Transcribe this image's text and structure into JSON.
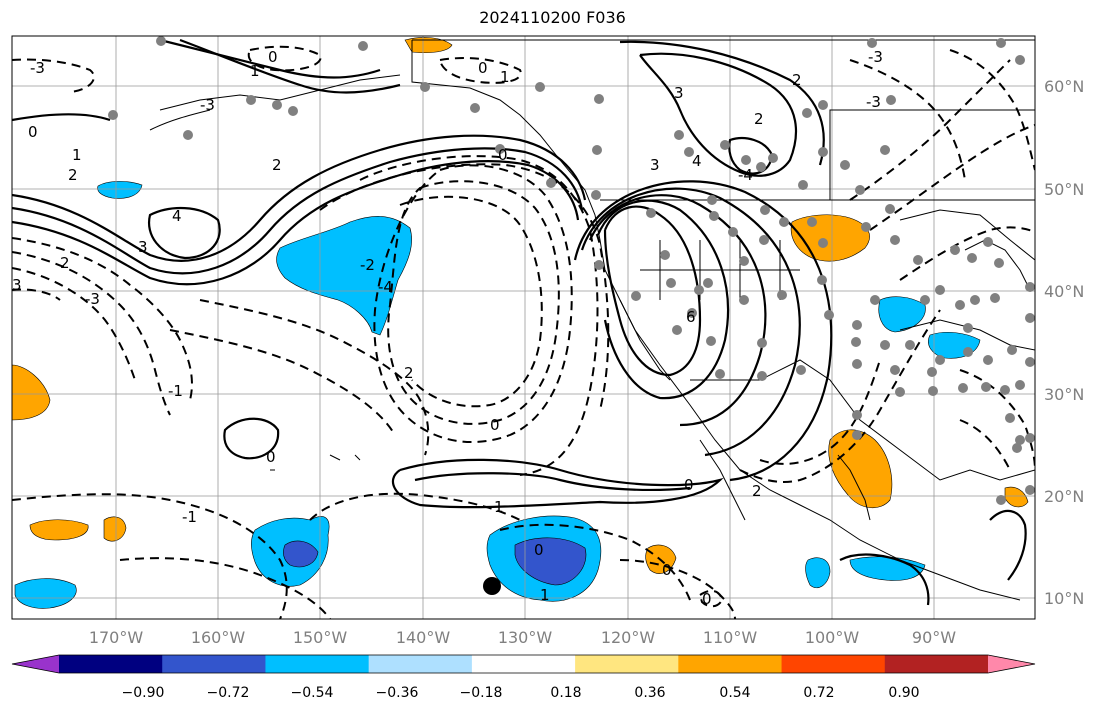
{
  "title": "2024110200 F036",
  "longitude_labels": [
    "170°W",
    "160°W",
    "150°W",
    "140°W",
    "130°W",
    "120°W",
    "110°W",
    "100°W",
    "90°W"
  ],
  "latitude_labels": [
    "60°N",
    "50°N",
    "40°N",
    "30°N",
    "20°N",
    "10°N"
  ],
  "colorbar": {
    "tick_labels": [
      "−0.90",
      "−0.72",
      "−0.54",
      "−0.36",
      "−0.18",
      "0.18",
      "0.36",
      "0.54",
      "0.72",
      "0.90"
    ],
    "colors": [
      "#9933cc",
      "#000080",
      "#3355cc",
      "#00bfff",
      "#aee0ff",
      "#ffffff",
      "#ffe680",
      "#ffa500",
      "#ff4500",
      "#b22222",
      "#ff88aa"
    ]
  },
  "contour_labels": [
    "-3",
    "0",
    "1",
    "2",
    "1",
    "2",
    "0",
    "3",
    "4",
    "3",
    "2",
    "-3",
    "-3",
    "0",
    "1",
    "2",
    "-3",
    "-4",
    "-3",
    "2",
    "0",
    "0",
    "-2",
    "3",
    "-4",
    "3",
    "4",
    "6",
    "1",
    "1",
    "-1",
    "0",
    "2",
    "2",
    "0",
    "0",
    "0",
    "0",
    "-1"
  ],
  "colors": {
    "land_outline": "#000000",
    "grid": "#999999",
    "station": "#808080",
    "negative_fill": "#00bfff",
    "negative_strong_fill": "#3355cc",
    "positive_fill": "#ffa500"
  }
}
